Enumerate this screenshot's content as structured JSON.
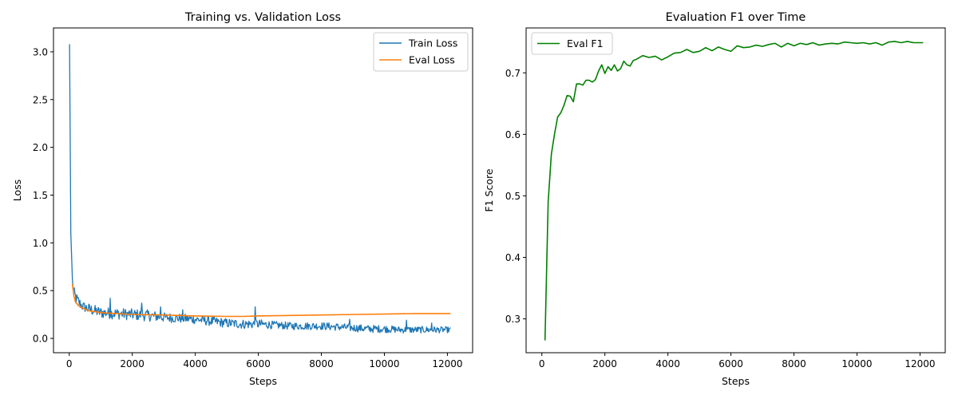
{
  "chart_data": [
    {
      "type": "line",
      "title": "Training vs. Validation Loss",
      "xlabel": "Steps",
      "ylabel": "Loss",
      "xlim": [
        -500,
        12800
      ],
      "ylim": [
        -0.15,
        3.25
      ],
      "xticks": [
        0,
        2000,
        4000,
        6000,
        8000,
        10000,
        12000
      ],
      "xtick_labels": [
        "0",
        "2000",
        "4000",
        "6000",
        "8000",
        "10000",
        "12000"
      ],
      "yticks": [
        0.0,
        0.5,
        1.0,
        1.5,
        2.0,
        2.5,
        3.0
      ],
      "ytick_labels": [
        "0.0",
        "0.5",
        "1.0",
        "1.5",
        "2.0",
        "2.5",
        "3.0"
      ],
      "grid": false,
      "legend_position": "top-right",
      "series": [
        {
          "name": "Train Loss",
          "color": "#1f77b4",
          "style": "noisy",
          "x": [
            10,
            50,
            100,
            150,
            200,
            300,
            400,
            600,
            800,
            1000,
            1500,
            2000,
            2500,
            3000,
            3500,
            4000,
            4500,
            5000,
            5500,
            6000,
            6500,
            7000,
            7500,
            8000,
            8500,
            9000,
            9500,
            10000,
            10500,
            11000,
            11500,
            12100
          ],
          "y": [
            3.08,
            1.1,
            0.6,
            0.48,
            0.43,
            0.38,
            0.34,
            0.31,
            0.29,
            0.27,
            0.26,
            0.25,
            0.24,
            0.22,
            0.21,
            0.2,
            0.18,
            0.16,
            0.15,
            0.15,
            0.14,
            0.13,
            0.13,
            0.13,
            0.12,
            0.11,
            0.1,
            0.1,
            0.09,
            0.09,
            0.09,
            0.09
          ],
          "noise": [
            0,
            0,
            0.06,
            0.06,
            0.06,
            0.06,
            0.05,
            0.06,
            0.06,
            0.06,
            0.06,
            0.06,
            0.06,
            0.05,
            0.05,
            0.05,
            0.05,
            0.05,
            0.05,
            0.05,
            0.04,
            0.04,
            0.04,
            0.04,
            0.04,
            0.04,
            0.04,
            0.04,
            0.035,
            0.035,
            0.035,
            0.03
          ],
          "spikes": [
            {
              "x": 150,
              "y": 0.57
            },
            {
              "x": 1300,
              "y": 0.42
            },
            {
              "x": 1750,
              "y": 0.38
            },
            {
              "x": 2300,
              "y": 0.37
            },
            {
              "x": 2900,
              "y": 0.33
            },
            {
              "x": 3600,
              "y": 0.3
            },
            {
              "x": 5900,
              "y": 0.33
            },
            {
              "x": 7950,
              "y": 0.29
            },
            {
              "x": 8900,
              "y": 0.2
            },
            {
              "x": 10700,
              "y": 0.19
            },
            {
              "x": 11500,
              "y": 0.16
            }
          ]
        },
        {
          "name": "Eval Loss",
          "color": "#ff7f0e",
          "style": "smooth",
          "x": [
            100,
            150,
            200,
            300,
            400,
            600,
            800,
            1000,
            1500,
            2000,
            3000,
            4000,
            5000,
            5500,
            6000,
            7000,
            8000,
            9000,
            10000,
            11000,
            12100
          ],
          "y": [
            0.57,
            0.44,
            0.38,
            0.34,
            0.32,
            0.29,
            0.28,
            0.27,
            0.26,
            0.25,
            0.245,
            0.235,
            0.23,
            0.23,
            0.235,
            0.24,
            0.245,
            0.25,
            0.255,
            0.26,
            0.26
          ]
        }
      ]
    },
    {
      "type": "line",
      "title": "Evaluation F1 over Time",
      "xlabel": "Steps",
      "ylabel": "F1 Score",
      "xlim": [
        -500,
        12800
      ],
      "ylim": [
        0.245,
        0.773
      ],
      "xticks": [
        0,
        2000,
        4000,
        6000,
        8000,
        10000,
        12000
      ],
      "xtick_labels": [
        "0",
        "2000",
        "4000",
        "6000",
        "8000",
        "10000",
        "12000"
      ],
      "yticks": [
        0.3,
        0.4,
        0.5,
        0.6,
        0.7
      ],
      "ytick_labels": [
        "0.3",
        "0.4",
        "0.5",
        "0.6",
        "0.7"
      ],
      "grid": false,
      "legend_position": "top-left",
      "series": [
        {
          "name": "Eval F1",
          "color": "#008000",
          "x": [
            100,
            200,
            300,
            400,
            500,
            600,
            700,
            800,
            900,
            1000,
            1100,
            1200,
            1300,
            1400,
            1500,
            1600,
            1700,
            1800,
            1900,
            2000,
            2100,
            2200,
            2300,
            2400,
            2500,
            2600,
            2700,
            2800,
            2900,
            3000,
            3200,
            3400,
            3600,
            3800,
            4000,
            4200,
            4400,
            4600,
            4800,
            5000,
            5200,
            5400,
            5600,
            5800,
            6000,
            6200,
            6400,
            6600,
            6800,
            7000,
            7200,
            7400,
            7600,
            7800,
            8000,
            8200,
            8400,
            8600,
            8800,
            9000,
            9200,
            9400,
            9600,
            9800,
            10000,
            10200,
            10400,
            10600,
            10800,
            11000,
            11200,
            11400,
            11600,
            11800,
            12100
          ],
          "y": [
            0.265,
            0.49,
            0.567,
            0.6,
            0.628,
            0.635,
            0.647,
            0.663,
            0.662,
            0.653,
            0.682,
            0.682,
            0.68,
            0.688,
            0.688,
            0.685,
            0.689,
            0.703,
            0.713,
            0.699,
            0.71,
            0.704,
            0.713,
            0.703,
            0.707,
            0.719,
            0.713,
            0.711,
            0.72,
            0.722,
            0.728,
            0.725,
            0.727,
            0.721,
            0.726,
            0.732,
            0.733,
            0.738,
            0.733,
            0.735,
            0.741,
            0.736,
            0.742,
            0.738,
            0.735,
            0.744,
            0.741,
            0.742,
            0.745,
            0.743,
            0.746,
            0.748,
            0.742,
            0.748,
            0.744,
            0.748,
            0.746,
            0.749,
            0.745,
            0.747,
            0.748,
            0.747,
            0.75,
            0.749,
            0.748,
            0.749,
            0.747,
            0.749,
            0.745,
            0.75,
            0.751,
            0.749,
            0.751,
            0.749,
            0.749
          ]
        }
      ]
    }
  ]
}
